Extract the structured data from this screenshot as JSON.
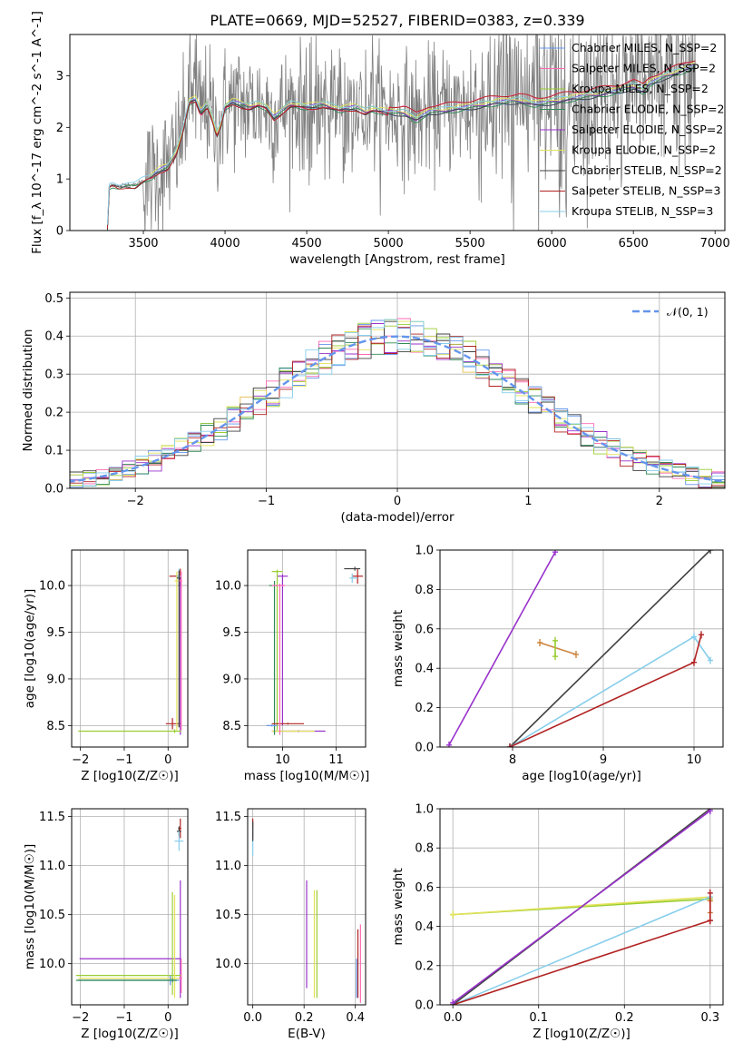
{
  "figure": {
    "title": "PLATE=0669, MJD=52527, FIBERID=0383, z=0.339"
  },
  "chart_data": [
    {
      "id": "spectrum",
      "type": "line",
      "xlabel": "wavelength [Angstrom, rest frame]",
      "ylabel": "Flux [f_λ 10^-17 erg cm^-2 s^-1 A^-1]",
      "xlim": [
        3050,
        7060
      ],
      "ylim": [
        0,
        3.8
      ],
      "xticks": [
        3500,
        4000,
        4500,
        5000,
        5500,
        6000,
        6500,
        7000
      ],
      "yticks": [
        0,
        1,
        2,
        3
      ],
      "grid": false,
      "legend_position": "top-right",
      "data_series": {
        "name": "data",
        "color": "#808080",
        "x_range": [
          3280,
          6880
        ]
      },
      "series": [
        {
          "name": "Chabrier MILES, N_SSP=2",
          "color": "#6495ed",
          "x_range": [
            3540,
            6880
          ]
        },
        {
          "name": "Salpeter MILES, N_SSP=2",
          "color": "#ff69b4",
          "x_range": [
            3540,
            6880
          ]
        },
        {
          "name": "Kroupa MILES, N_SSP=2",
          "color": "#9acd32",
          "x_range": [
            3540,
            6880
          ]
        },
        {
          "name": "Chabrier ELODIE, N_SSP=2",
          "color": "#2e8b57",
          "x_range": [
            3280,
            6880
          ]
        },
        {
          "name": "Salpeter ELODIE, N_SSP=2",
          "color": "#9932cc",
          "x_range": [
            3540,
            6880
          ]
        },
        {
          "name": "Kroupa ELODIE, N_SSP=2",
          "color": "#e3e35a",
          "x_range": [
            3540,
            6880
          ]
        },
        {
          "name": "Chabrier STELIB, N_SSP=2",
          "color": "#404040",
          "x_range": [
            3280,
            6880
          ]
        },
        {
          "name": "Salpeter STELIB, N_SSP=3",
          "color": "#b22222",
          "x_range": [
            3280,
            6880
          ]
        },
        {
          "name": "Kroupa STELIB, N_SSP=3",
          "color": "#87ceeb",
          "x_range": [
            3280,
            6880
          ]
        }
      ],
      "continuum_points": [
        [
          3280,
          0.05
        ],
        [
          3290,
          0.85
        ],
        [
          3310,
          0.9
        ],
        [
          3350,
          0.86
        ],
        [
          3400,
          0.9
        ],
        [
          3450,
          0.88
        ],
        [
          3500,
          0.98
        ],
        [
          3550,
          1.05
        ],
        [
          3600,
          1.18
        ],
        [
          3650,
          1.25
        ],
        [
          3700,
          1.5
        ],
        [
          3740,
          1.9
        ],
        [
          3780,
          2.5
        ],
        [
          3820,
          2.55
        ],
        [
          3850,
          2.3
        ],
        [
          3890,
          2.45
        ],
        [
          3920,
          2.2
        ],
        [
          3950,
          1.85
        ],
        [
          3980,
          2.1
        ],
        [
          4000,
          2.4
        ],
        [
          4050,
          2.5
        ],
        [
          4100,
          2.45
        ],
        [
          4150,
          2.4
        ],
        [
          4200,
          2.45
        ],
        [
          4250,
          2.4
        ],
        [
          4300,
          2.2
        ],
        [
          4340,
          2.3
        ],
        [
          4400,
          2.45
        ],
        [
          4500,
          2.4
        ],
        [
          4600,
          2.45
        ],
        [
          4700,
          2.35
        ],
        [
          4800,
          2.4
        ],
        [
          4860,
          2.3
        ],
        [
          4900,
          2.35
        ],
        [
          5000,
          2.3
        ],
        [
          5100,
          2.28
        ],
        [
          5170,
          2.15
        ],
        [
          5250,
          2.3
        ],
        [
          5400,
          2.35
        ],
        [
          5500,
          2.4
        ],
        [
          5600,
          2.45
        ],
        [
          5700,
          2.5
        ],
        [
          5800,
          2.52
        ],
        [
          5900,
          2.45
        ],
        [
          6000,
          2.5
        ],
        [
          6100,
          2.55
        ],
        [
          6200,
          2.6
        ],
        [
          6300,
          2.65
        ],
        [
          6400,
          2.7
        ],
        [
          6500,
          2.8
        ],
        [
          6560,
          2.7
        ],
        [
          6600,
          2.85
        ],
        [
          6700,
          3.0
        ],
        [
          6800,
          3.1
        ],
        [
          6880,
          3.2
        ]
      ]
    },
    {
      "id": "residuals",
      "type": "histogram",
      "xlabel": "(data-model)/error",
      "ylabel": "Normed distribution",
      "xlim": [
        -2.5,
        2.5
      ],
      "ylim": [
        0,
        0.515
      ],
      "xticks": [
        -2,
        -1,
        0,
        1,
        2
      ],
      "yticks": [
        0.0,
        0.1,
        0.2,
        0.3,
        0.4,
        0.5
      ],
      "grid": true,
      "legend_position": "top-right",
      "legend": [
        {
          "name": "𝒩(0, 1)",
          "color": "#6495ed",
          "style": "dashed"
        }
      ],
      "bin_width": 0.1,
      "bin_range": [
        -2.5,
        2.5
      ]
    },
    {
      "id": "age-vs-Z",
      "type": "errorbar",
      "xlabel": "Z [log10(Z/Z☉)]",
      "ylabel": "age [log10(age/yr)]",
      "xlim": [
        -2.2,
        0.45
      ],
      "ylim": [
        8.27,
        10.38
      ],
      "xticks": [
        -2,
        -1,
        0
      ],
      "yticks": [
        8.5,
        9.0,
        9.5,
        10.0
      ],
      "grid": true,
      "points": [
        {
          "color": "#b22222",
          "x": 0.28,
          "xerr": [
            0.25,
            0.02
          ],
          "y": 10.1,
          "yerr": [
            0.1,
            0.08
          ]
        },
        {
          "color": "#b22222",
          "x": 0.1,
          "xerr": [
            0.15,
            0.2
          ],
          "y": 8.52,
          "yerr": [
            0.06,
            0.06
          ]
        },
        {
          "color": "#9932cc",
          "x": 0.28,
          "xerr": [
            0.05,
            0.02
          ],
          "y": 10.0,
          "yerr": [
            1.6,
            0.1
          ]
        },
        {
          "color": "#9acd32",
          "x": 0.15,
          "xerr": [
            2.2,
            0.15
          ],
          "y": 8.44,
          "yerr": [
            0.02,
            0.02
          ]
        },
        {
          "color": "#e3e35a",
          "x": 0.2,
          "xerr": [
            0.05,
            0.1
          ],
          "y": 10.05,
          "yerr": [
            1.6,
            0.1
          ]
        },
        {
          "color": "#87ceeb",
          "x": 0.25,
          "xerr": [
            0.05,
            0.05
          ],
          "y": 10.1,
          "yerr": [
            0.08,
            0.08
          ]
        },
        {
          "color": "#404040",
          "x": 0.25,
          "xerr": [
            0.05,
            0.05
          ],
          "y": 10.08,
          "yerr": [
            1.6,
            0.08
          ]
        },
        {
          "color": "#ff69b4",
          "x": 0.3,
          "xerr": [
            0.05,
            0.02
          ],
          "y": 10.05,
          "yerr": [
            1.6,
            0.1
          ]
        }
      ]
    },
    {
      "id": "age-vs-mass",
      "type": "errorbar",
      "xlabel": "mass [log10(M/M☉)]",
      "ylabel": "",
      "xlim": [
        9.35,
        11.55
      ],
      "ylim": [
        8.27,
        10.38
      ],
      "xticks": [
        10,
        11
      ],
      "yticks": [
        8.5,
        9.0,
        9.5,
        10.0
      ],
      "grid": true,
      "points": [
        {
          "color": "#b22222",
          "x": 11.4,
          "xerr": [
            0.1,
            0.1
          ],
          "y": 10.1,
          "yerr": [
            0.08,
            0.08
          ]
        },
        {
          "color": "#87ceeb",
          "x": 11.3,
          "xerr": [
            0.05,
            0.1
          ],
          "y": 10.08,
          "yerr": [
            0.05,
            0.05
          ]
        },
        {
          "color": "#404040",
          "x": 11.35,
          "xerr": [
            0.2,
            0.1
          ],
          "y": 10.18,
          "yerr": [
            0.02,
            0.02
          ]
        },
        {
          "color": "#9932cc",
          "x": 10.0,
          "xerr": [
            0.1,
            0.1
          ],
          "y": 10.1,
          "yerr": [
            1.6,
            0.02
          ]
        },
        {
          "color": "#9932cc",
          "x": 10.3,
          "xerr": [
            0.5,
            0.5
          ],
          "y": 8.44,
          "yerr": [
            0.01,
            0.01
          ]
        },
        {
          "color": "#9acd32",
          "x": 9.9,
          "xerr": [
            0.1,
            0.1
          ],
          "y": 10.15,
          "yerr": [
            1.7,
            0.02
          ]
        },
        {
          "color": "#e3e35a",
          "x": 10.2,
          "xerr": [
            0.4,
            0.4
          ],
          "y": 8.44,
          "yerr": [
            0.01,
            0.01
          ]
        },
        {
          "color": "#2e8b57",
          "x": 9.85,
          "xerr": [
            0.1,
            0.05
          ],
          "y": 10.0,
          "yerr": [
            1.6,
            0.05
          ]
        },
        {
          "color": "#b22222",
          "x": 10.1,
          "xerr": [
            0.3,
            0.3
          ],
          "y": 8.52,
          "yerr": [
            0.01,
            0.01
          ]
        },
        {
          "color": "#6495ed",
          "x": 9.8,
          "xerr": [
            0.1,
            0.1
          ],
          "y": 8.5,
          "yerr": [
            0.01,
            0.01
          ]
        },
        {
          "color": "#ff69b4",
          "x": 9.95,
          "xerr": [
            0.15,
            0.1
          ],
          "y": 10.0,
          "yerr": [
            1.6,
            0.02
          ]
        }
      ]
    },
    {
      "id": "mass-weight-vs-age",
      "type": "line",
      "xlabel": "age [log10(age/yr)]",
      "ylabel": "mass weight",
      "xlim": [
        7.2,
        10.32
      ],
      "ylim": [
        0,
        1.0
      ],
      "xticks": [
        8,
        9,
        10
      ],
      "yticks": [
        0.0,
        0.2,
        0.4,
        0.6,
        0.8,
        1.0
      ],
      "grid": true,
      "series": [
        {
          "color": "#9932cc",
          "x": [
            7.3,
            8.47
          ],
          "y": [
            0.01,
            0.99
          ]
        },
        {
          "color": "#404040",
          "x": [
            7.97,
            10.18
          ],
          "y": [
            0.0,
            1.0
          ]
        },
        {
          "color": "#87ceeb",
          "x": [
            7.97,
            10.0,
            10.18
          ],
          "y": [
            0.0,
            0.56,
            0.44
          ]
        },
        {
          "color": "#b22222",
          "x": [
            7.97,
            10.0,
            10.08
          ],
          "y": [
            0.0,
            0.43,
            0.57
          ]
        },
        {
          "color": "#cd853f",
          "x": [
            8.3,
            8.7
          ],
          "y": [
            0.53,
            0.47
          ]
        },
        {
          "color": "#9acd32",
          "x": [
            8.47,
            8.47
          ],
          "y": [
            0.46,
            0.54
          ]
        }
      ]
    },
    {
      "id": "mass-vs-Z",
      "type": "errorbar",
      "xlabel": "Z [log10(Z/Z☉)]",
      "ylabel": "mass [log10(M/M☉)]",
      "xlim": [
        -2.2,
        0.45
      ],
      "ylim": [
        9.58,
        11.58
      ],
      "xticks": [
        -2,
        -1,
        0
      ],
      "yticks": [
        10.0,
        10.5,
        11.0,
        11.5
      ],
      "grid": true,
      "points": [
        {
          "color": "#b22222",
          "x": 0.28,
          "xerr": [
            0.05,
            0.02
          ],
          "y": 11.38,
          "yerr": [
            0.1,
            0.1
          ]
        },
        {
          "color": "#404040",
          "x": 0.25,
          "xerr": [
            0.05,
            0.05
          ],
          "y": 11.35,
          "yerr": [
            0.05,
            0.05
          ]
        },
        {
          "color": "#87ceeb",
          "x": 0.25,
          "xerr": [
            0.1,
            0.1
          ],
          "y": 11.25,
          "yerr": [
            0.1,
            0.1
          ]
        },
        {
          "color": "#9932cc",
          "x": 0.28,
          "xerr": [
            2.3,
            0.02
          ],
          "y": 10.05,
          "yerr": [
            0.4,
            0.8
          ]
        },
        {
          "color": "#9acd32",
          "x": 0.1,
          "xerr": [
            2.2,
            0.2
          ],
          "y": 9.88,
          "yerr": [
            0.2,
            0.85
          ]
        },
        {
          "color": "#e3e35a",
          "x": 0.15,
          "xerr": [
            2.2,
            0.15
          ],
          "y": 9.85,
          "yerr": [
            0.2,
            0.85
          ]
        },
        {
          "color": "#6495ed",
          "x": 0.05,
          "xerr": [
            2.1,
            0.2
          ],
          "y": 9.83,
          "yerr": [
            0.05,
            0.05
          ]
        },
        {
          "color": "#2e8b57",
          "x": 0.1,
          "xerr": [
            2.2,
            0.1
          ],
          "y": 9.83,
          "yerr": [
            0.02,
            0.02
          ]
        },
        {
          "color": "#ff69b4",
          "x": 0.3,
          "xerr": [
            0.05,
            0.02
          ],
          "y": 9.85,
          "yerr": [
            0.15,
            0.2
          ]
        }
      ]
    },
    {
      "id": "mass-vs-ebv",
      "type": "errorbar",
      "xlabel": "E(B-V)",
      "ylabel": "",
      "xlim": [
        -0.02,
        0.44
      ],
      "ylim": [
        9.58,
        11.58
      ],
      "xticks": [
        0.0,
        0.2,
        0.4
      ],
      "yticks": [
        10.0,
        10.5,
        11.0,
        11.5
      ],
      "grid": true,
      "points": [
        {
          "color": "#b22222",
          "x": 0.0,
          "xerr": [
            0.0,
            0.0
          ],
          "y": 11.38,
          "yerr": [
            0.1,
            0.1
          ]
        },
        {
          "color": "#87ceeb",
          "x": 0.0,
          "xerr": [
            0.0,
            0.0
          ],
          "y": 11.25,
          "yerr": [
            0.15,
            0.15
          ]
        },
        {
          "color": "#404040",
          "x": 0.0,
          "xerr": [
            0.0,
            0.0
          ],
          "y": 11.35,
          "yerr": [
            0.1,
            0.1
          ]
        },
        {
          "color": "#9932cc",
          "x": 0.21,
          "xerr": [
            0.0,
            0.0
          ],
          "y": 10.3,
          "yerr": [
            0.55,
            0.55
          ]
        },
        {
          "color": "#9acd32",
          "x": 0.25,
          "xerr": [
            0.0,
            0.0
          ],
          "y": 10.2,
          "yerr": [
            0.55,
            0.55
          ]
        },
        {
          "color": "#e3e35a",
          "x": 0.24,
          "xerr": [
            0.0,
            0.0
          ],
          "y": 10.2,
          "yerr": [
            0.55,
            0.55
          ]
        },
        {
          "color": "#ff69b4",
          "x": 0.42,
          "xerr": [
            0.0,
            0.0
          ],
          "y": 10.0,
          "yerr": [
            0.4,
            0.4
          ]
        },
        {
          "color": "#b22222",
          "x": 0.41,
          "xerr": [
            0.0,
            0.0
          ],
          "y": 10.0,
          "yerr": [
            0.35,
            0.35
          ]
        },
        {
          "color": "#6495ed",
          "x": 0.405,
          "xerr": [
            0.0,
            0.0
          ],
          "y": 9.85,
          "yerr": [
            0.2,
            0.2
          ]
        }
      ]
    },
    {
      "id": "mass-weight-vs-Z",
      "type": "line",
      "xlabel": "Z [log10(Z/Z☉)]",
      "ylabel": "mass weight",
      "xlim": [
        -0.015,
        0.315
      ],
      "ylim": [
        0,
        1.0
      ],
      "xticks": [
        0.0,
        0.1,
        0.2,
        0.3
      ],
      "yticks": [
        0.0,
        0.2,
        0.4,
        0.6,
        0.8,
        1.0
      ],
      "grid": true,
      "series": [
        {
          "color": "#9acd32",
          "x": [
            0.0,
            0.3
          ],
          "y": [
            0.46,
            0.54
          ]
        },
        {
          "color": "#e3e35a",
          "x": [
            0.0,
            0.3
          ],
          "y": [
            0.46,
            0.55
          ]
        },
        {
          "color": "#87ceeb",
          "x": [
            0.0,
            0.3
          ],
          "y": [
            0.0,
            0.55
          ]
        },
        {
          "color": "#b22222",
          "x": [
            0.0,
            0.3
          ],
          "y": [
            0.0,
            0.43
          ]
        },
        {
          "color": "#404040",
          "x": [
            0.0,
            0.3
          ],
          "y": [
            0.0,
            1.0
          ]
        },
        {
          "color": "#9932cc",
          "x": [
            0.0,
            0.3
          ],
          "y": [
            0.01,
            0.99
          ]
        },
        {
          "color": "#cd853f",
          "x": [
            0.3,
            0.3
          ],
          "y": [
            0.47,
            0.53
          ]
        },
        {
          "color": "#b22222",
          "x": [
            0.3,
            0.3
          ],
          "y": [
            0.43,
            0.57
          ]
        }
      ]
    }
  ]
}
